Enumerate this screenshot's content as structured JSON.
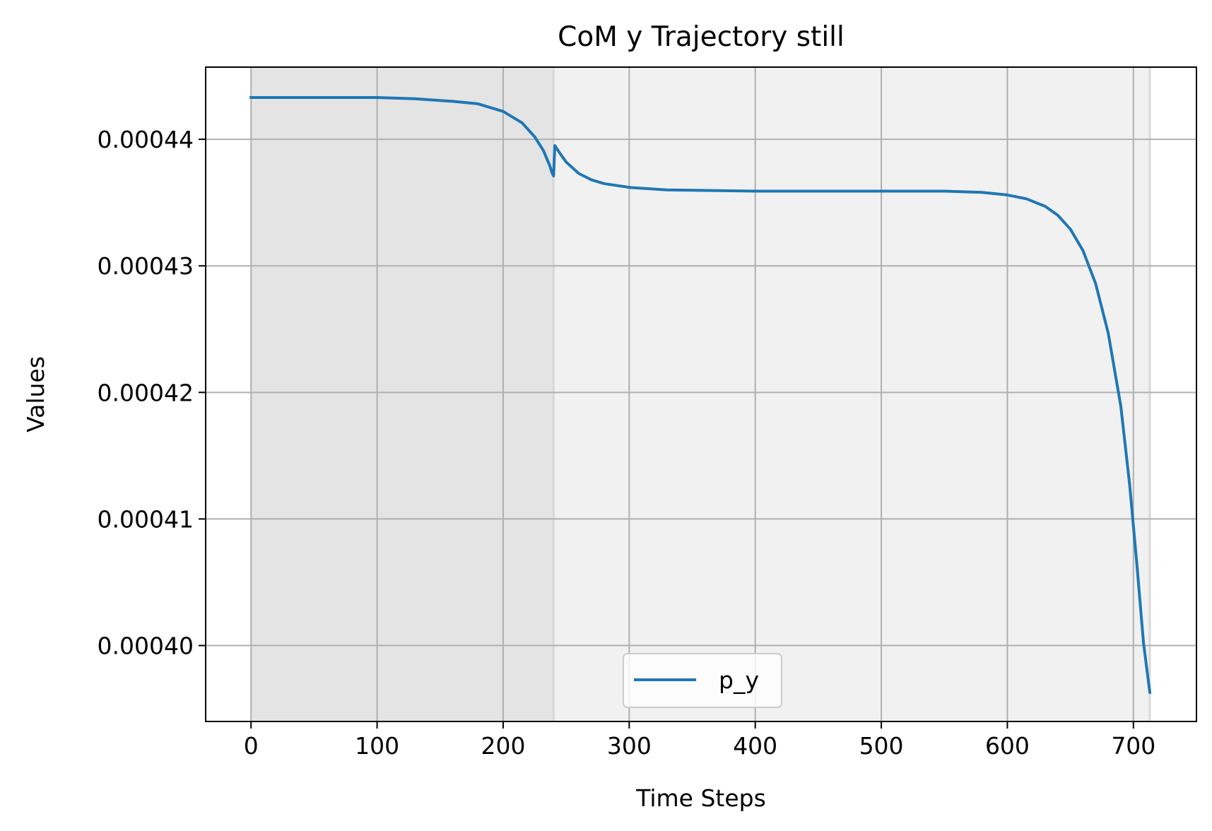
{
  "chart_data": {
    "type": "line",
    "title": "CoM y Trajectory still",
    "xlabel": "Time Steps",
    "ylabel": "Values",
    "xlim": [
      -36,
      750
    ],
    "ylim": [
      0.000394,
      0.0004457
    ],
    "xticks": [
      0,
      100,
      200,
      300,
      400,
      500,
      600,
      700
    ],
    "xtick_labels": [
      "0",
      "100",
      "200",
      "300",
      "400",
      "500",
      "600",
      "700"
    ],
    "yticks": [
      0.0004,
      0.00041,
      0.00042,
      0.00043,
      0.00044
    ],
    "ytick_labels": [
      "0.00040",
      "0.00041",
      "0.00042",
      "0.00043",
      "0.00044"
    ],
    "grid": true,
    "legend_position": "lower center",
    "shaded_regions": [
      {
        "x_start": 0,
        "x_end": 240,
        "color": "#e4e4e4"
      },
      {
        "x_start": 240,
        "x_end": 713,
        "color": "#f1f1f1"
      }
    ],
    "series": [
      {
        "name": "p_y",
        "color": "#1f77b4",
        "x": [
          0,
          50,
          100,
          130,
          160,
          180,
          200,
          215,
          225,
          232,
          237,
          239,
          240,
          241,
          245,
          250,
          260,
          270,
          280,
          300,
          330,
          400,
          500,
          550,
          580,
          600,
          615,
          630,
          640,
          650,
          660,
          670,
          680,
          690,
          697,
          703,
          708,
          713
        ],
        "y": [
          0.0004433,
          0.0004433,
          0.0004433,
          0.0004432,
          0.000443,
          0.0004428,
          0.0004422,
          0.0004413,
          0.0004402,
          0.0004391,
          0.0004379,
          0.0004373,
          0.0004371,
          0.0004395,
          0.0004389,
          0.0004382,
          0.0004373,
          0.0004368,
          0.0004365,
          0.0004362,
          0.000436,
          0.0004359,
          0.0004359,
          0.0004359,
          0.0004358,
          0.0004356,
          0.0004353,
          0.0004347,
          0.000434,
          0.0004329,
          0.0004312,
          0.0004286,
          0.0004247,
          0.0004189,
          0.0004127,
          0.0004061,
          0.0004002,
          0.0003963
        ]
      }
    ]
  },
  "colors": {
    "background": "#ffffff",
    "grid": "#b0b0b0",
    "axes": "#000000",
    "line": "#1f77b4"
  }
}
